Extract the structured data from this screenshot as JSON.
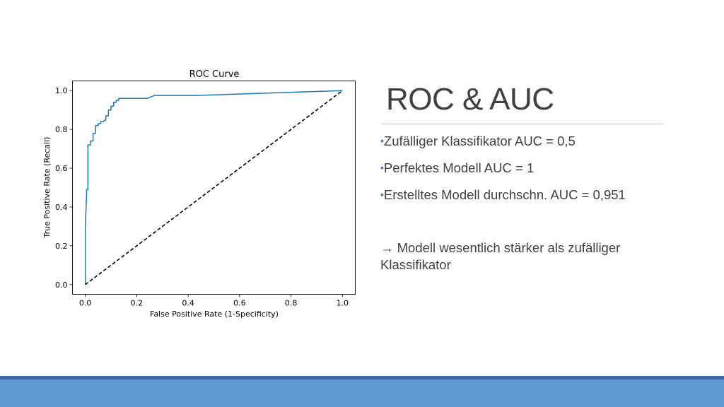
{
  "slide": {
    "title": "ROC & AUC",
    "bullets": [
      "Zufälliger Klassifikator AUC = 0,5",
      "Perfektes Modell AUC = 1",
      "Erstelltes Modell durchschn. AUC = 0,951"
    ],
    "bullet_glyph": "•",
    "conclusion_arrow": "→",
    "conclusion": " Modell wesentlich stärker als zufälliger Klassifikator"
  },
  "colors": {
    "title": "#404040",
    "text": "#404040",
    "bullet": "#4472c4",
    "roc_line": "#1f77b4",
    "footer_band": "#5e9bd1",
    "footer_line": "#3f67a8"
  },
  "chart_data": {
    "type": "line",
    "title": "ROC Curve",
    "xlabel": "False Positive Rate (1-Specificity)",
    "ylabel": "True Positive Rate (Recall)",
    "xlim": [
      -0.05,
      1.05
    ],
    "ylim": [
      -0.05,
      1.05
    ],
    "xticks": [
      0.0,
      0.2,
      0.4,
      0.6,
      0.8,
      1.0
    ],
    "yticks": [
      0.0,
      0.2,
      0.4,
      0.6,
      0.8,
      1.0
    ],
    "tick_labels": [
      "0.0",
      "0.2",
      "0.4",
      "0.6",
      "0.8",
      "1.0"
    ],
    "grid": false,
    "series": [
      {
        "name": "ROC",
        "style": "solid",
        "x": [
          0.0,
          0.0,
          0.005,
          0.005,
          0.01,
          0.01,
          0.01,
          0.02,
          0.02,
          0.03,
          0.03,
          0.04,
          0.04,
          0.05,
          0.05,
          0.06,
          0.06,
          0.07,
          0.08,
          0.08,
          0.09,
          0.09,
          0.1,
          0.1,
          0.11,
          0.11,
          0.12,
          0.12,
          0.13,
          0.13,
          0.24,
          0.27,
          0.43,
          1.0
        ],
        "y": [
          0.0,
          0.3,
          0.47,
          0.49,
          0.49,
          0.7,
          0.72,
          0.72,
          0.74,
          0.74,
          0.78,
          0.78,
          0.82,
          0.82,
          0.83,
          0.83,
          0.84,
          0.84,
          0.85,
          0.87,
          0.87,
          0.9,
          0.9,
          0.92,
          0.92,
          0.94,
          0.94,
          0.95,
          0.95,
          0.96,
          0.96,
          0.975,
          0.975,
          1.0
        ]
      },
      {
        "name": "Zufall",
        "style": "dashed",
        "x": [
          0.0,
          1.0
        ],
        "y": [
          0.0,
          1.0
        ]
      }
    ]
  }
}
